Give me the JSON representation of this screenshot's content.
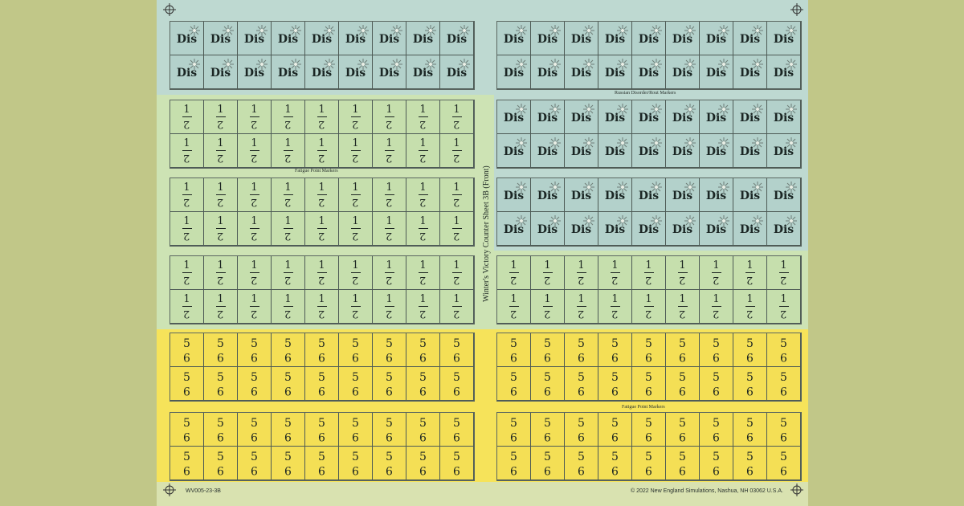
{
  "sheet": {
    "vertical_title": "Winter's Victory Counter Sheet 3B (Front)",
    "code": "WV005-23-3B",
    "copyright": "© 2022 New England Simulations, Nashua, NH 03062 U.S.A.",
    "label_russian": "Russian Disorder/Rout Markers",
    "label_fatigue_left": "Fatigue Point Markers",
    "label_fatigue_right": "Fatigue Point Markers"
  },
  "counters": {
    "dis_text": "Dis",
    "fatigue_top": "1",
    "fatigue_bottom": "2",
    "yellow_top": "5",
    "yellow_bottom": "9"
  },
  "colors": {
    "page_bg": "#c1c788",
    "blue_zone": "#bed9d1",
    "green_zone": "#cde3b4",
    "yellow_zone": "#f6e35a"
  },
  "icons": [
    "burst-icon",
    "registration-mark-icon"
  ]
}
